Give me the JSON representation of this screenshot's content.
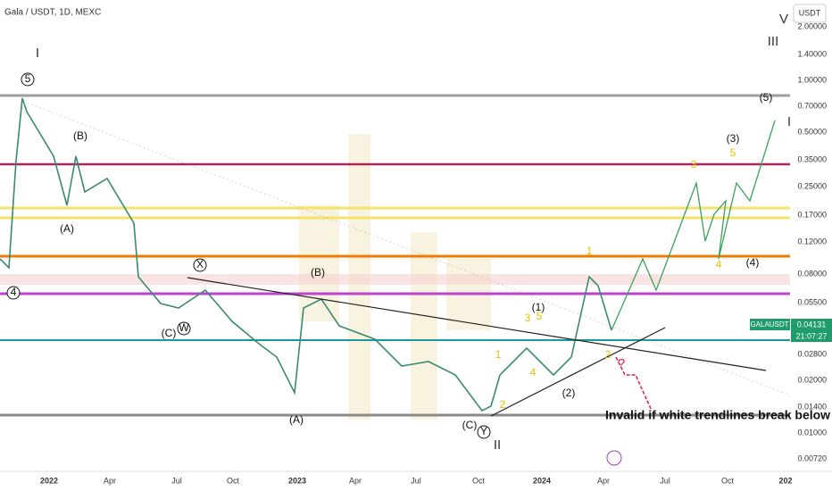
{
  "header": {
    "symbol": "Gala / USDT, 1D, MEXC",
    "currency": "USDT"
  },
  "price_axis": [
    "2.00000",
    "1.40000",
    "1.00000",
    "0.70000",
    "0.50000",
    "0.35000",
    "0.25000",
    "0.17000",
    "0.12000",
    "0.08000",
    "0.05500",
    "0.02800",
    "0.02000",
    "0.01400",
    "0.01000",
    "0.00720"
  ],
  "time_axis": [
    "2022",
    "Apr",
    "Jul",
    "Oct",
    "2023",
    "Apr",
    "Jul",
    "Oct",
    "2024",
    "Apr",
    "Jul",
    "Oct",
    "202"
  ],
  "price_tag": {
    "symbol": "GALAUSDT",
    "price": "0.04131",
    "countdown": "21:07:27"
  },
  "annotations": [
    "I",
    "5",
    "(B)",
    "(A)",
    "X",
    "(C)",
    "W",
    "(B)",
    "(A)",
    "(C)",
    "Y",
    "II",
    "1",
    "3",
    "5",
    "(1)",
    "2",
    "4",
    "(2)",
    "1",
    "2",
    "?",
    "3",
    "5",
    "(3)",
    "4",
    "(4)",
    "(5)",
    "V",
    "III",
    "I",
    "4"
  ],
  "note": "Invalid if white trendlines break below"
}
